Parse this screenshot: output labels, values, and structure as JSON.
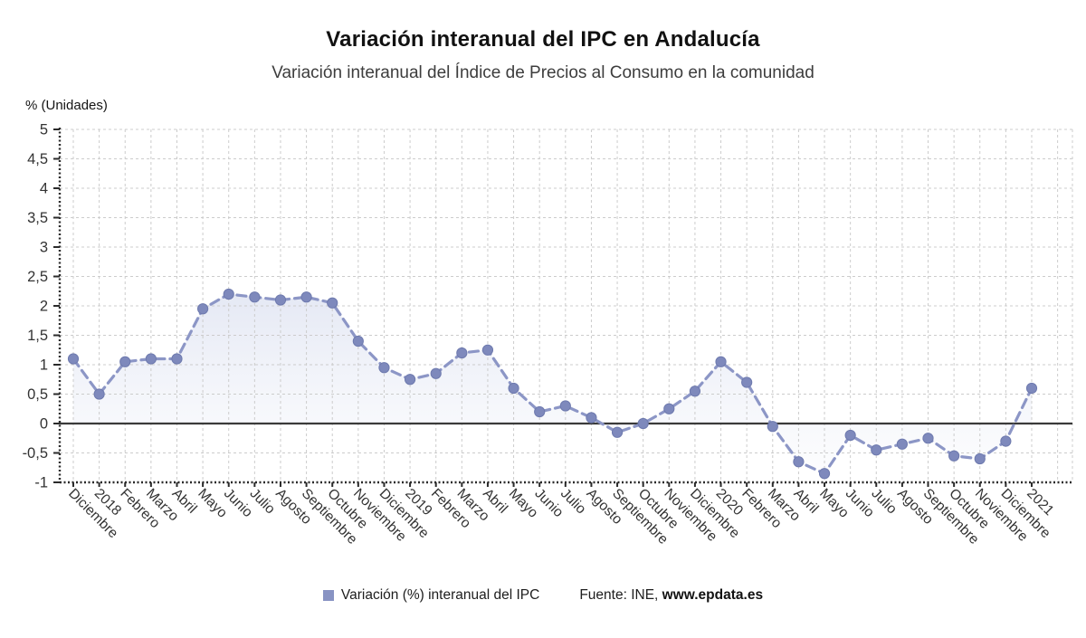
{
  "header": {
    "title": "Variación interanual del IPC en Andalucía",
    "subtitle": "Variación interanual del Índice de Precios al Consumo en la comunidad"
  },
  "axis": {
    "unit_label": "% (Unidades)"
  },
  "chart_data": {
    "type": "line",
    "title": "Variación interanual del IPC en Andalucía",
    "ylabel": "% (Unidades)",
    "xlabel": "",
    "categories": [
      "Diciembre",
      "2018",
      "Febrero",
      "Marzo",
      "Abril",
      "Mayo",
      "Junio",
      "Julio",
      "Agosto",
      "Septiembre",
      "Octubre",
      "Noviembre",
      "Diciembre",
      "2019",
      "Febrero",
      "Marzo",
      "Abril",
      "Mayo",
      "Junio",
      "Julio",
      "Agosto",
      "Septiembre",
      "Octubre",
      "Noviembre",
      "Diciembre",
      "2020",
      "Febrero",
      "Marzo",
      "Abril",
      "Mayo",
      "Junio",
      "Julio",
      "Agosto",
      "Septiembre",
      "Octubre",
      "Noviembre",
      "Diciembre",
      "2021"
    ],
    "series": [
      {
        "name": "Variación (%) interanual del IPC",
        "values": [
          1.1,
          0.5,
          1.05,
          1.1,
          1.1,
          1.95,
          2.2,
          2.15,
          2.1,
          2.15,
          2.05,
          1.4,
          0.95,
          0.75,
          0.85,
          1.2,
          1.25,
          0.6,
          0.2,
          0.3,
          0.1,
          -0.15,
          0,
          0.25,
          0.55,
          1.05,
          0.7,
          -0.05,
          -0.65,
          -0.85,
          -0.2,
          -0.45,
          -0.35,
          -0.25,
          -0.55,
          -0.6,
          -0.3,
          0.6
        ]
      }
    ],
    "ylim": [
      -1,
      5
    ],
    "ytick_step": 0.5,
    "ytick_labels": [
      "5",
      "4,5",
      "4",
      "3,5",
      "3",
      "2,5",
      "2",
      "1,5",
      "1",
      "0,5",
      "0",
      "-0,5",
      "-1"
    ],
    "grid": true,
    "zero_baseline": true,
    "legend_position": "bottom",
    "marker": "circle",
    "line_style": "dashed",
    "colors": {
      "line": "#8c96c6",
      "marker": "#7e89bc",
      "marker_edge": "#6e7aae",
      "area_top": "#e2e6f3",
      "area_bottom": "#fafbfd",
      "grid": "#cccccc",
      "axis": "#2b2b2b",
      "zero_line": "#3a3a3a",
      "tick_text": "#333333"
    }
  },
  "legend": {
    "swatch_color": "#8893c3",
    "series_label": "Variación (%) interanual del IPC"
  },
  "source": {
    "prefix": "Fuente: INE, ",
    "site": "www.epdata.es"
  }
}
